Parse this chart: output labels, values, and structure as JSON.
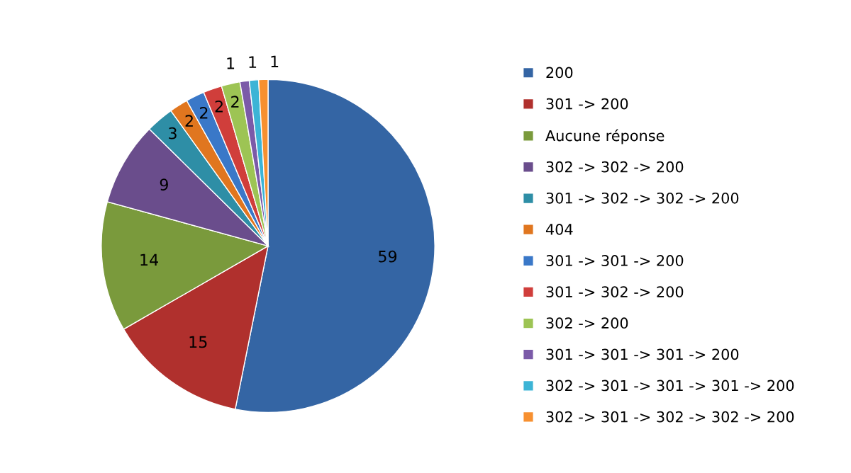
{
  "chart_data": {
    "type": "pie",
    "categories": [
      "200",
      "301 -> 200",
      "Aucune réponse",
      "302 -> 302 -> 200",
      "301 -> 302 -> 302 -> 200",
      "404",
      "301 -> 301 -> 200",
      "301 -> 302 -> 200",
      "302 -> 200",
      "301 -> 301 -> 301 -> 200",
      "302 -> 301 -> 301 -> 301 -> 200",
      "302 -> 301 -> 302 -> 302 -> 200"
    ],
    "values": [
      59,
      15,
      14,
      9,
      3,
      2,
      2,
      2,
      2,
      1,
      1,
      1
    ],
    "colors": [
      "#3465a4",
      "#b0302d",
      "#7a9a3c",
      "#6a4d8c",
      "#2e8ea6",
      "#e0761f",
      "#3a78c8",
      "#d03e3b",
      "#9dc454",
      "#7b5aa8",
      "#3cb4d6",
      "#f79030"
    ],
    "data_labels": true,
    "legend": "right"
  }
}
